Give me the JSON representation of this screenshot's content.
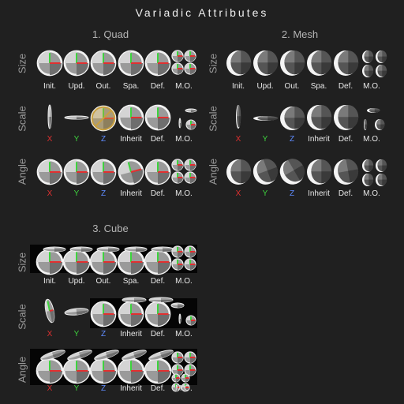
{
  "title": "Variadic Attributes",
  "sections": [
    {
      "name": "1. Quad"
    },
    {
      "name": "2. Mesh"
    },
    {
      "name": "3. Cube"
    }
  ],
  "row_labels": [
    "Size",
    "Scale",
    "Angle"
  ],
  "size_labels": [
    "Init.",
    "Upd.",
    "Out.",
    "Spa.",
    "Def.",
    "M.O."
  ],
  "axis_labels": [
    "X",
    "Y",
    "Z",
    "Inherit",
    "Def.",
    "M.O."
  ],
  "colors": {
    "background": "#202020",
    "axis_x": "#e23030",
    "axis_y": "#3ed33e",
    "axis_z": "#5f8cff",
    "highlight": "#c8a040"
  }
}
